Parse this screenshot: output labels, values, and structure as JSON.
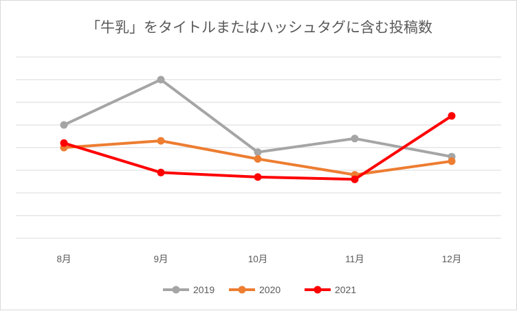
{
  "chart_data": {
    "type": "line",
    "title": "「牛乳」をタイトルまたはハッシュタグに含む投稿数",
    "xlabel": "",
    "ylabel": "",
    "categories": [
      "8月",
      "9月",
      "10月",
      "11月",
      "12月"
    ],
    "ylim": [
      0,
      8
    ],
    "y_axis_labels_shown": false,
    "grid": true,
    "legend_position": "bottom",
    "series": [
      {
        "name": "2019",
        "color": "#a5a5a5",
        "values": [
          5.0,
          7.0,
          3.8,
          4.4,
          3.6
        ]
      },
      {
        "name": "2020",
        "color": "#ed7d31",
        "values": [
          4.0,
          4.3,
          3.5,
          2.8,
          3.4
        ]
      },
      {
        "name": "2021",
        "color": "#ff0000",
        "values": [
          4.2,
          2.9,
          2.7,
          2.6,
          5.4
        ]
      }
    ]
  }
}
